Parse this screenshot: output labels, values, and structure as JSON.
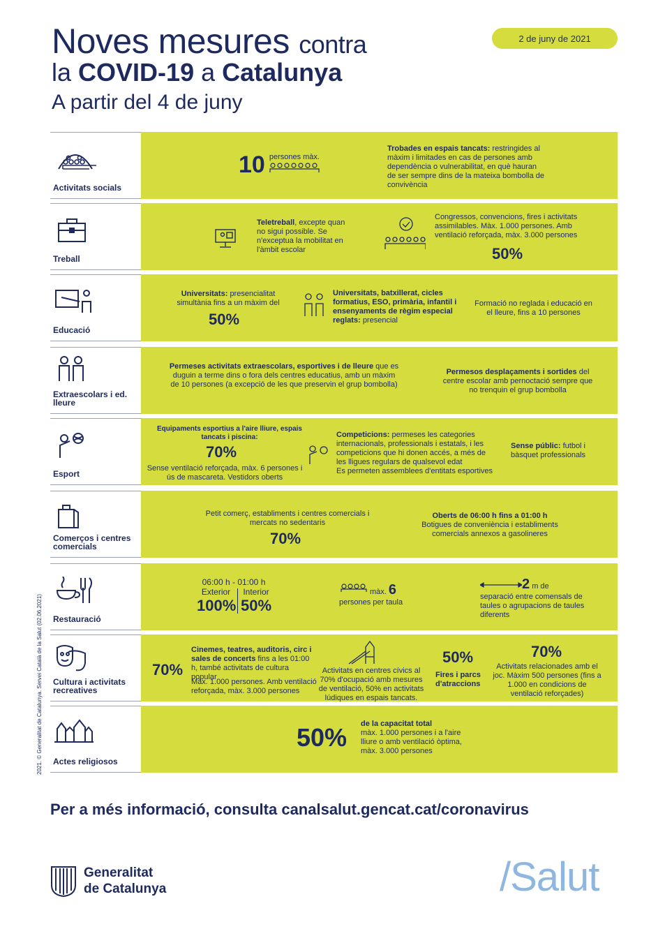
{
  "header": {
    "title_line1": "Noves mesures",
    "title_line1_small": "contra",
    "title_line2_pre": "la",
    "title_line2_bold1": "COVID-19",
    "title_line2_mid": "a",
    "title_line2_bold2": "Catalunya",
    "subtitle": "A partir del 4 de juny",
    "date": "2 de juny de 2021"
  },
  "colors": {
    "accent": "#d5dd3e",
    "navy": "#1e2a5e",
    "salut": "#8fb6df"
  },
  "credit": "2021. © Generalitat de Catalunya. Servei Català de la Salut (02.06.2021)",
  "rows": [
    {
      "label": "Activitats socials",
      "icon": "group-dome-icon",
      "big": "10",
      "big_note": "persones màx.",
      "text_bold": "Trobades en espais tancats:",
      "text": "restringides al màxim i limitades en cas de persones amb dependència o vulnerabilitat, en què hauran de ser sempre dins de la mateixa bombolla de convivència"
    },
    {
      "label": "Treball",
      "icon": "briefcase-icon",
      "text1_bold": "Teletreball",
      "text1": ", excepte quan no sigui possible. Se n'exceptua la mobilitat en l'àmbit escolar",
      "text2": "Congressos, convencions, fires i activitats assimilables. Màx. 1.000 persones. Amb ventilació reforçada, màx. 3.000 persones",
      "pct": "50%"
    },
    {
      "label": "Educació",
      "icon": "teacher-board-icon",
      "text1_bold": "Universitats:",
      "text1": "presencialitat simultània fins a un màxim del",
      "pct": "50%",
      "text2_bold": "Universitats, batxillerat, cicles formatius, ESO, primària, infantil i ensenyaments de règim especial reglats:",
      "text2": "presencial",
      "text3": "Formació no reglada i educació en el lleure, fins a 10 persones"
    },
    {
      "label": "Extraescolars i ed. lleure",
      "icon": "children-icon",
      "text1_bold": "Permeses activitats extraescolars, esportives i de lleure",
      "text1": "que es duguin a terme dins o fora dels centres educatius, amb un màxim de 10 persones (a excepció de les que preservin el grup bombolla)",
      "text2_bold": "Permesos desplaçaments i sortides",
      "text2": "del centre escolar amb pernoctació sempre que no trenquin el grup bombolla"
    },
    {
      "label": "Esport",
      "icon": "athlete-ball-icon",
      "text1_bold": "Equipaments esportius a l'aire lliure, espais tancats i piscina:",
      "pct": "70%",
      "text1": "Sense ventilació reforçada, màx. 6 persones i ús de mascareta. Vestidors oberts",
      "text2_bold": "Competicions:",
      "text2": "permeses les categories internacionals, professionals i estatals, i les competicions que hi donen accés, a més de les lligues regulars de qualsevol edat",
      "text2b": "Es permeten assemblees d'entitats esportives",
      "text3_bold": "Sense públic:",
      "text3": "futbol i bàsquet professionals"
    },
    {
      "label": "Comerços i centres comercials",
      "icon": "shopping-bag-icon",
      "text1": "Petit comerç, establiments i centres comercials i mercats no sedentaris",
      "pct": "70%",
      "text2_bold": "Oberts de 06:00 h fins a 01:00 h",
      "text2": "Botigues de conveniència i establiments comercials annexos a gasolineres"
    },
    {
      "label": "Restauració",
      "icon": "cup-cutlery-icon",
      "hours": "06:00 h - 01:00 h",
      "exterior_label": "Exterior",
      "exterior_pct": "100%",
      "interior_label": "Interior",
      "interior_pct": "50%",
      "table_max": "màx.",
      "table_num": "6",
      "table_note": "persones per taula",
      "dist_num": "2",
      "dist_unit": "m",
      "dist_de": "de",
      "dist_text": "separació entre comensals de taules o agrupacions de taules diferents"
    },
    {
      "label": "Cultura i activitats recreatives",
      "icon": "theatre-masks-icon",
      "pct_left": "70%",
      "text1_bold": "Cinemes, teatres, auditoris, circ i sales de concerts",
      "text1": "fins a les 01:00 h, també activitats de cultura popular",
      "text1b": "Màx. 1.000 persones. Amb ventilació reforçada, màx. 3.000 persones",
      "text2": "Activitats en centres cívics al 70% d'ocupació amb mesures de ventilació, 50% en activitats lúdiques en espais tancats.",
      "pct_mid": "50%",
      "text3": "Fires i parcs d'atraccions",
      "pct_right": "70%",
      "text4": "Activitats relacionades amb el joc. Màxim 500 persones (fins a 1.000 en condicions de ventilació reforçades)"
    },
    {
      "label": "Actes religiosos",
      "icon": "church-icon",
      "pct": "50%",
      "text_bold": "de la capacitat total",
      "text": "màx. 1.000 persones i a l'aire lliure o amb ventilació òptima, màx. 3.000 persones"
    }
  ],
  "footer": {
    "info": "Per a més informació, consulta canalsalut.gencat.cat/coronavirus",
    "gen_line1": "Generalitat",
    "gen_line2": "de Catalunya",
    "salut": "/Salut"
  }
}
